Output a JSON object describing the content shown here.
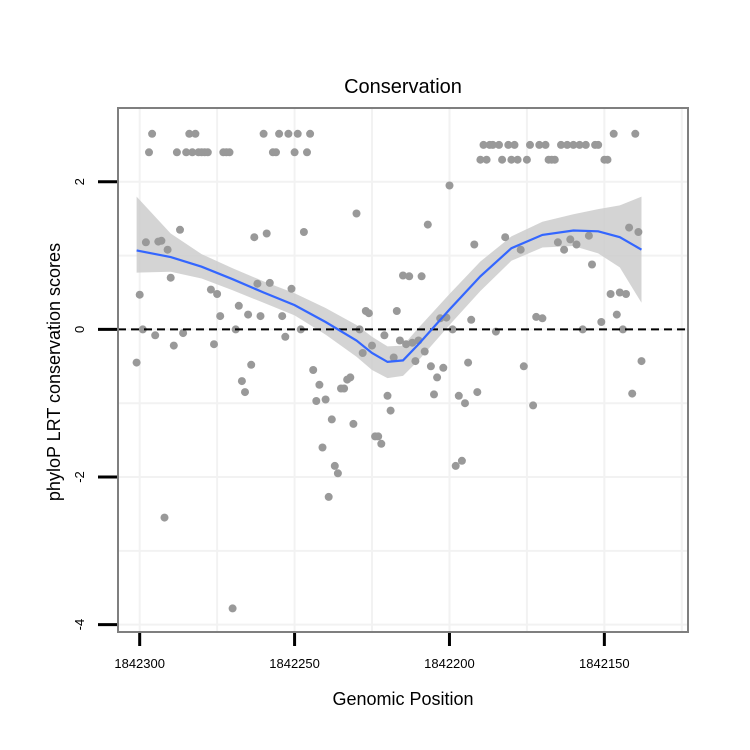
{
  "chart_data": {
    "type": "scatter",
    "title": "Conservation",
    "xlabel": "Genomic Position",
    "ylabel": "phyloP LRT conservation scores",
    "x_reversed": true,
    "xlim": [
      1842307,
      1842123
    ],
    "ylim": [
      -4.1,
      3.0
    ],
    "x_ticks": [
      1842300,
      1842250,
      1842200,
      1842150
    ],
    "x_tick_labels": [
      "1842300",
      "1842250",
      "1842200",
      "1842150"
    ],
    "y_ticks": [
      -4,
      -2,
      0,
      2
    ],
    "y_tick_labels": [
      "-4",
      "-2",
      "0",
      "2"
    ],
    "grid": true,
    "reference_line": {
      "y": 0,
      "style": "dashed"
    },
    "colors": {
      "points": "#999999",
      "smooth": "#3366ff",
      "band": "#cccccc",
      "panel_border": "#7f7f7f",
      "grid": "#f2f2f2"
    },
    "points": [
      [
        1842301,
        -0.45
      ],
      [
        1842300,
        0.47
      ],
      [
        1842299,
        0.0
      ],
      [
        1842298,
        1.18
      ],
      [
        1842297,
        2.4
      ],
      [
        1842296,
        2.65
      ],
      [
        1842295,
        -0.08
      ],
      [
        1842294,
        1.19
      ],
      [
        1842293,
        1.2
      ],
      [
        1842292,
        -2.55
      ],
      [
        1842291,
        1.08
      ],
      [
        1842290,
        0.7
      ],
      [
        1842289,
        -0.22
      ],
      [
        1842288,
        2.4
      ],
      [
        1842287,
        1.35
      ],
      [
        1842286,
        -0.05
      ],
      [
        1842285,
        2.4
      ],
      [
        1842284,
        2.65
      ],
      [
        1842283,
        2.4
      ],
      [
        1842282,
        2.65
      ],
      [
        1842281,
        2.4
      ],
      [
        1842280,
        2.4
      ],
      [
        1842279,
        2.4
      ],
      [
        1842278,
        2.4
      ],
      [
        1842277,
        0.54
      ],
      [
        1842276,
        -0.2
      ],
      [
        1842275,
        0.48
      ],
      [
        1842274,
        0.18
      ],
      [
        1842273,
        2.4
      ],
      [
        1842272,
        2.4
      ],
      [
        1842271,
        2.4
      ],
      [
        1842270,
        -3.78
      ],
      [
        1842269,
        0.0
      ],
      [
        1842268,
        0.32
      ],
      [
        1842267,
        -0.7
      ],
      [
        1842266,
        -0.85
      ],
      [
        1842265,
        0.2
      ],
      [
        1842264,
        -0.48
      ],
      [
        1842263,
        1.25
      ],
      [
        1842262,
        0.62
      ],
      [
        1842261,
        0.18
      ],
      [
        1842260,
        2.65
      ],
      [
        1842259,
        1.3
      ],
      [
        1842258,
        0.63
      ],
      [
        1842257,
        2.4
      ],
      [
        1842256,
        2.4
      ],
      [
        1842255,
        2.65
      ],
      [
        1842254,
        0.18
      ],
      [
        1842253,
        -0.1
      ],
      [
        1842252,
        2.65
      ],
      [
        1842251,
        0.55
      ],
      [
        1842250,
        2.4
      ],
      [
        1842249,
        2.65
      ],
      [
        1842248,
        0.0
      ],
      [
        1842247,
        1.32
      ],
      [
        1842246,
        2.4
      ],
      [
        1842245,
        2.65
      ],
      [
        1842244,
        -0.55
      ],
      [
        1842243,
        -0.97
      ],
      [
        1842242,
        -0.75
      ],
      [
        1842241,
        -1.6
      ],
      [
        1842240,
        -0.95
      ],
      [
        1842239,
        -2.27
      ],
      [
        1842238,
        -1.22
      ],
      [
        1842237,
        -1.85
      ],
      [
        1842236,
        -1.95
      ],
      [
        1842235,
        -0.8
      ],
      [
        1842234,
        -0.8
      ],
      [
        1842233,
        -0.68
      ],
      [
        1842232,
        -0.65
      ],
      [
        1842231,
        -1.28
      ],
      [
        1842230,
        1.57
      ],
      [
        1842229,
        0.0
      ],
      [
        1842228,
        -0.32
      ],
      [
        1842227,
        0.25
      ],
      [
        1842226,
        0.22
      ],
      [
        1842225,
        -0.22
      ],
      [
        1842224,
        -1.45
      ],
      [
        1842223,
        -1.45
      ],
      [
        1842222,
        -1.55
      ],
      [
        1842221,
        -0.08
      ],
      [
        1842220,
        -0.9
      ],
      [
        1842219,
        -1.1
      ],
      [
        1842218,
        -0.38
      ],
      [
        1842217,
        0.25
      ],
      [
        1842216,
        -0.15
      ],
      [
        1842215,
        0.73
      ],
      [
        1842214,
        -0.2
      ],
      [
        1842213,
        0.72
      ],
      [
        1842212,
        -0.18
      ],
      [
        1842211,
        -0.43
      ],
      [
        1842210,
        -0.15
      ],
      [
        1842209,
        0.72
      ],
      [
        1842208,
        -0.3
      ],
      [
        1842207,
        1.42
      ],
      [
        1842206,
        -0.5
      ],
      [
        1842205,
        -0.88
      ],
      [
        1842204,
        -0.65
      ],
      [
        1842203,
        0.15
      ],
      [
        1842202,
        -0.52
      ],
      [
        1842201,
        0.16
      ],
      [
        1842200,
        1.95
      ],
      [
        1842199,
        0.0
      ],
      [
        1842198,
        -1.85
      ],
      [
        1842197,
        -0.9
      ],
      [
        1842196,
        -1.78
      ],
      [
        1842195,
        -1.0
      ],
      [
        1842194,
        -0.45
      ],
      [
        1842193,
        0.13
      ],
      [
        1842192,
        1.15
      ],
      [
        1842191,
        -0.85
      ],
      [
        1842190,
        2.3
      ],
      [
        1842189,
        2.5
      ],
      [
        1842188,
        2.3
      ],
      [
        1842187,
        2.5
      ],
      [
        1842186,
        2.5
      ],
      [
        1842185,
        -0.03
      ],
      [
        1842184,
        2.5
      ],
      [
        1842183,
        2.3
      ],
      [
        1842182,
        1.25
      ],
      [
        1842181,
        2.5
      ],
      [
        1842180,
        2.3
      ],
      [
        1842179,
        2.5
      ],
      [
        1842178,
        2.3
      ],
      [
        1842177,
        1.08
      ],
      [
        1842176,
        -0.5
      ],
      [
        1842175,
        2.3
      ],
      [
        1842174,
        2.5
      ],
      [
        1842173,
        -1.03
      ],
      [
        1842172,
        0.17
      ],
      [
        1842171,
        2.5
      ],
      [
        1842170,
        0.15
      ],
      [
        1842169,
        2.5
      ],
      [
        1842168,
        2.3
      ],
      [
        1842167,
        2.3
      ],
      [
        1842166,
        2.3
      ],
      [
        1842165,
        1.18
      ],
      [
        1842164,
        2.5
      ],
      [
        1842163,
        1.08
      ],
      [
        1842162,
        2.5
      ],
      [
        1842161,
        1.22
      ],
      [
        1842160,
        2.5
      ],
      [
        1842159,
        1.15
      ],
      [
        1842158,
        2.5
      ],
      [
        1842157,
        0.0
      ],
      [
        1842156,
        2.5
      ],
      [
        1842155,
        1.27
      ],
      [
        1842154,
        0.88
      ],
      [
        1842153,
        2.5
      ],
      [
        1842152,
        2.5
      ],
      [
        1842151,
        0.1
      ],
      [
        1842150,
        2.3
      ],
      [
        1842149,
        2.3
      ],
      [
        1842148,
        0.48
      ],
      [
        1842147,
        2.65
      ],
      [
        1842146,
        0.2
      ],
      [
        1842145,
        0.5
      ],
      [
        1842144,
        0.0
      ],
      [
        1842143,
        0.48
      ],
      [
        1842142,
        1.38
      ],
      [
        1842141,
        -0.87
      ],
      [
        1842140,
        2.65
      ],
      [
        1842139,
        1.32
      ],
      [
        1842138,
        -0.43
      ]
    ],
    "smooth": {
      "x": [
        1842301,
        1842290,
        1842280,
        1842270,
        1842260,
        1842250,
        1842240,
        1842230,
        1842225,
        1842220,
        1842215,
        1842210,
        1842200,
        1842190,
        1842180,
        1842170,
        1842160,
        1842152,
        1842145,
        1842138
      ],
      "y": [
        1.07,
        0.98,
        0.85,
        0.68,
        0.5,
        0.33,
        0.1,
        -0.15,
        -0.32,
        -0.44,
        -0.42,
        -0.2,
        0.27,
        0.72,
        1.1,
        1.28,
        1.34,
        1.33,
        1.25,
        1.08
      ],
      "lower": [
        0.77,
        0.78,
        0.69,
        0.53,
        0.36,
        0.19,
        -0.07,
        -0.37,
        -0.55,
        -0.66,
        -0.63,
        -0.42,
        0.06,
        0.52,
        0.93,
        1.11,
        1.13,
        1.03,
        0.84,
        0.36
      ],
      "upper": [
        1.8,
        1.3,
        1.02,
        0.83,
        0.65,
        0.49,
        0.29,
        0.06,
        -0.1,
        -0.23,
        -0.22,
        0.02,
        0.48,
        0.92,
        1.26,
        1.46,
        1.56,
        1.63,
        1.68,
        1.8
      ]
    }
  }
}
